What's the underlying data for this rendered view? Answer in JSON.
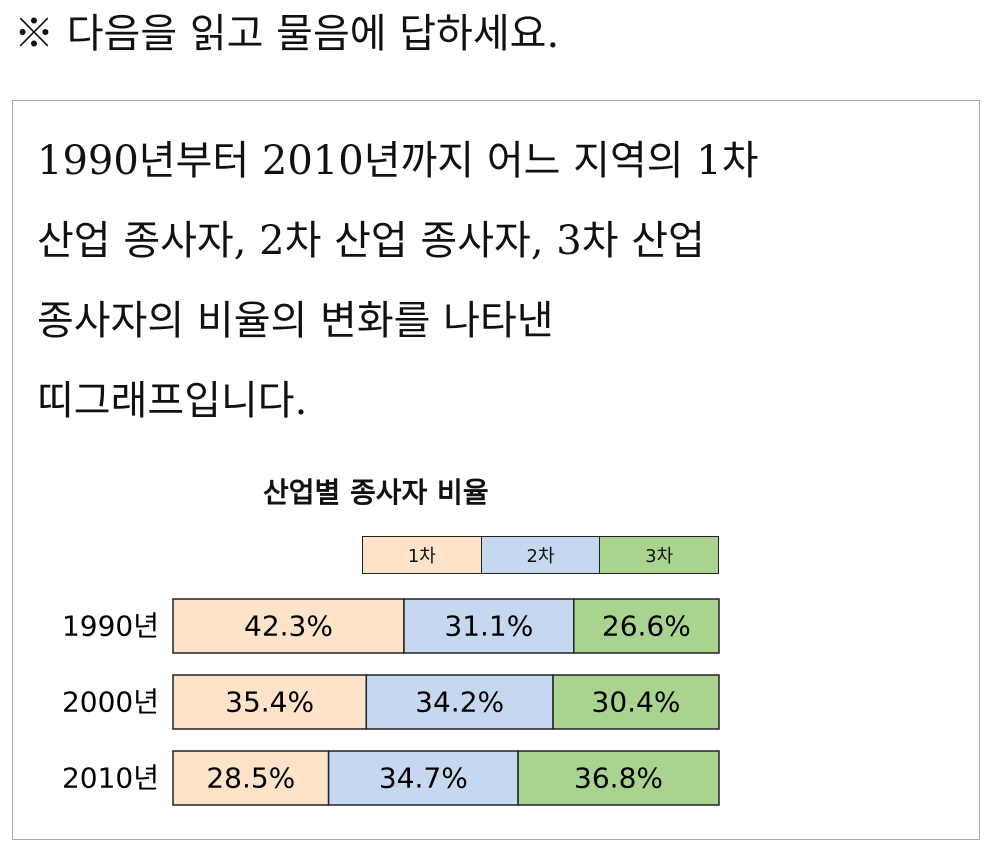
{
  "instruction": "※ 다음을 읽고 물음에 답하세요.",
  "passage": {
    "lines": [
      "1990년부터 2010년까지 어느 지역의 1차",
      "산업 종사자, 2차 산업 종사자, 3차 산업",
      "종사자의 비율의 변화를 나타낸",
      "띠그래프입니다."
    ]
  },
  "chart_data": {
    "type": "bar",
    "orientation": "horizontal",
    "stacked": true,
    "title": "산업별 종사자 비율",
    "categories": [
      "1990년",
      "2000년",
      "2010년"
    ],
    "series": [
      {
        "name": "1차",
        "color": "#fde3c9",
        "values": [
          42.3,
          35.4,
          28.5
        ],
        "labels": [
          "42.3%",
          "35.4%",
          "28.5%"
        ]
      },
      {
        "name": "2차",
        "color": "#c6d8ef",
        "values": [
          31.1,
          34.2,
          34.7
        ],
        "labels": [
          "31.1%",
          "34.2%",
          "34.7%"
        ]
      },
      {
        "name": "3차",
        "color": "#a9d48f",
        "values": [
          26.6,
          30.4,
          36.8
        ],
        "labels": [
          "26.6%",
          "30.4%",
          "36.8%"
        ]
      }
    ],
    "xlim": [
      0,
      100
    ],
    "legend": "top",
    "grid": false
  }
}
